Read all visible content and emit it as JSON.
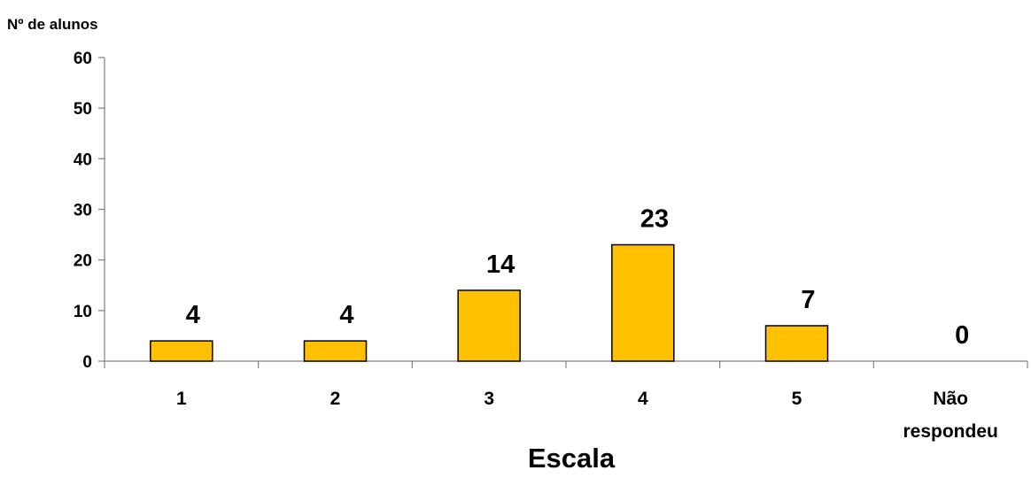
{
  "chart_data": {
    "type": "bar",
    "title": "",
    "ylabel": "Nº de alunos",
    "xlabel": "Escala",
    "categories": [
      "1",
      "2",
      "3",
      "4",
      "5",
      "Não respondeu"
    ],
    "category_lines": [
      [
        "1"
      ],
      [
        "2"
      ],
      [
        "3"
      ],
      [
        "4"
      ],
      [
        "5"
      ],
      [
        "Não",
        "respondeu"
      ]
    ],
    "values": [
      4,
      4,
      14,
      23,
      7,
      0
    ],
    "ylim": [
      0,
      60
    ],
    "yticks": [
      0,
      10,
      20,
      30,
      40,
      50,
      60
    ],
    "grid": false,
    "legend": "none",
    "bar_color": "#FFC000",
    "bar_edge_color": "#000000"
  }
}
